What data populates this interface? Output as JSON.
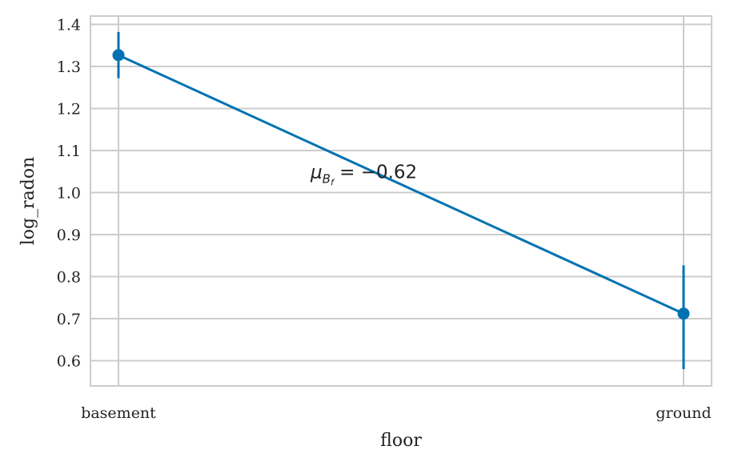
{
  "chart_data": {
    "type": "line",
    "title": "",
    "xlabel": "floor",
    "ylabel": "log_radon",
    "categories": [
      "basement",
      "ground"
    ],
    "series": [
      {
        "values": [
          1.327,
          0.712
        ],
        "error_low": [
          1.272,
          0.58
        ],
        "error_high": [
          1.382,
          0.827
        ],
        "color": "#0072b2"
      }
    ],
    "ylim": [
      0.54,
      1.42
    ],
    "yticks": [
      0.6,
      0.7,
      0.8,
      0.9,
      1.0,
      1.1,
      1.2,
      1.3,
      1.4
    ],
    "ytick_labels": [
      "0.6",
      "0.7",
      "0.8",
      "0.9",
      "1.0",
      "1.1",
      "1.2",
      "1.3",
      "1.4"
    ],
    "grid": true,
    "annotation": {
      "symbol": "μ",
      "sub": "B",
      "subsub": "f",
      "text": " = −0.62",
      "x": 0.5,
      "y": 1.05
    }
  }
}
